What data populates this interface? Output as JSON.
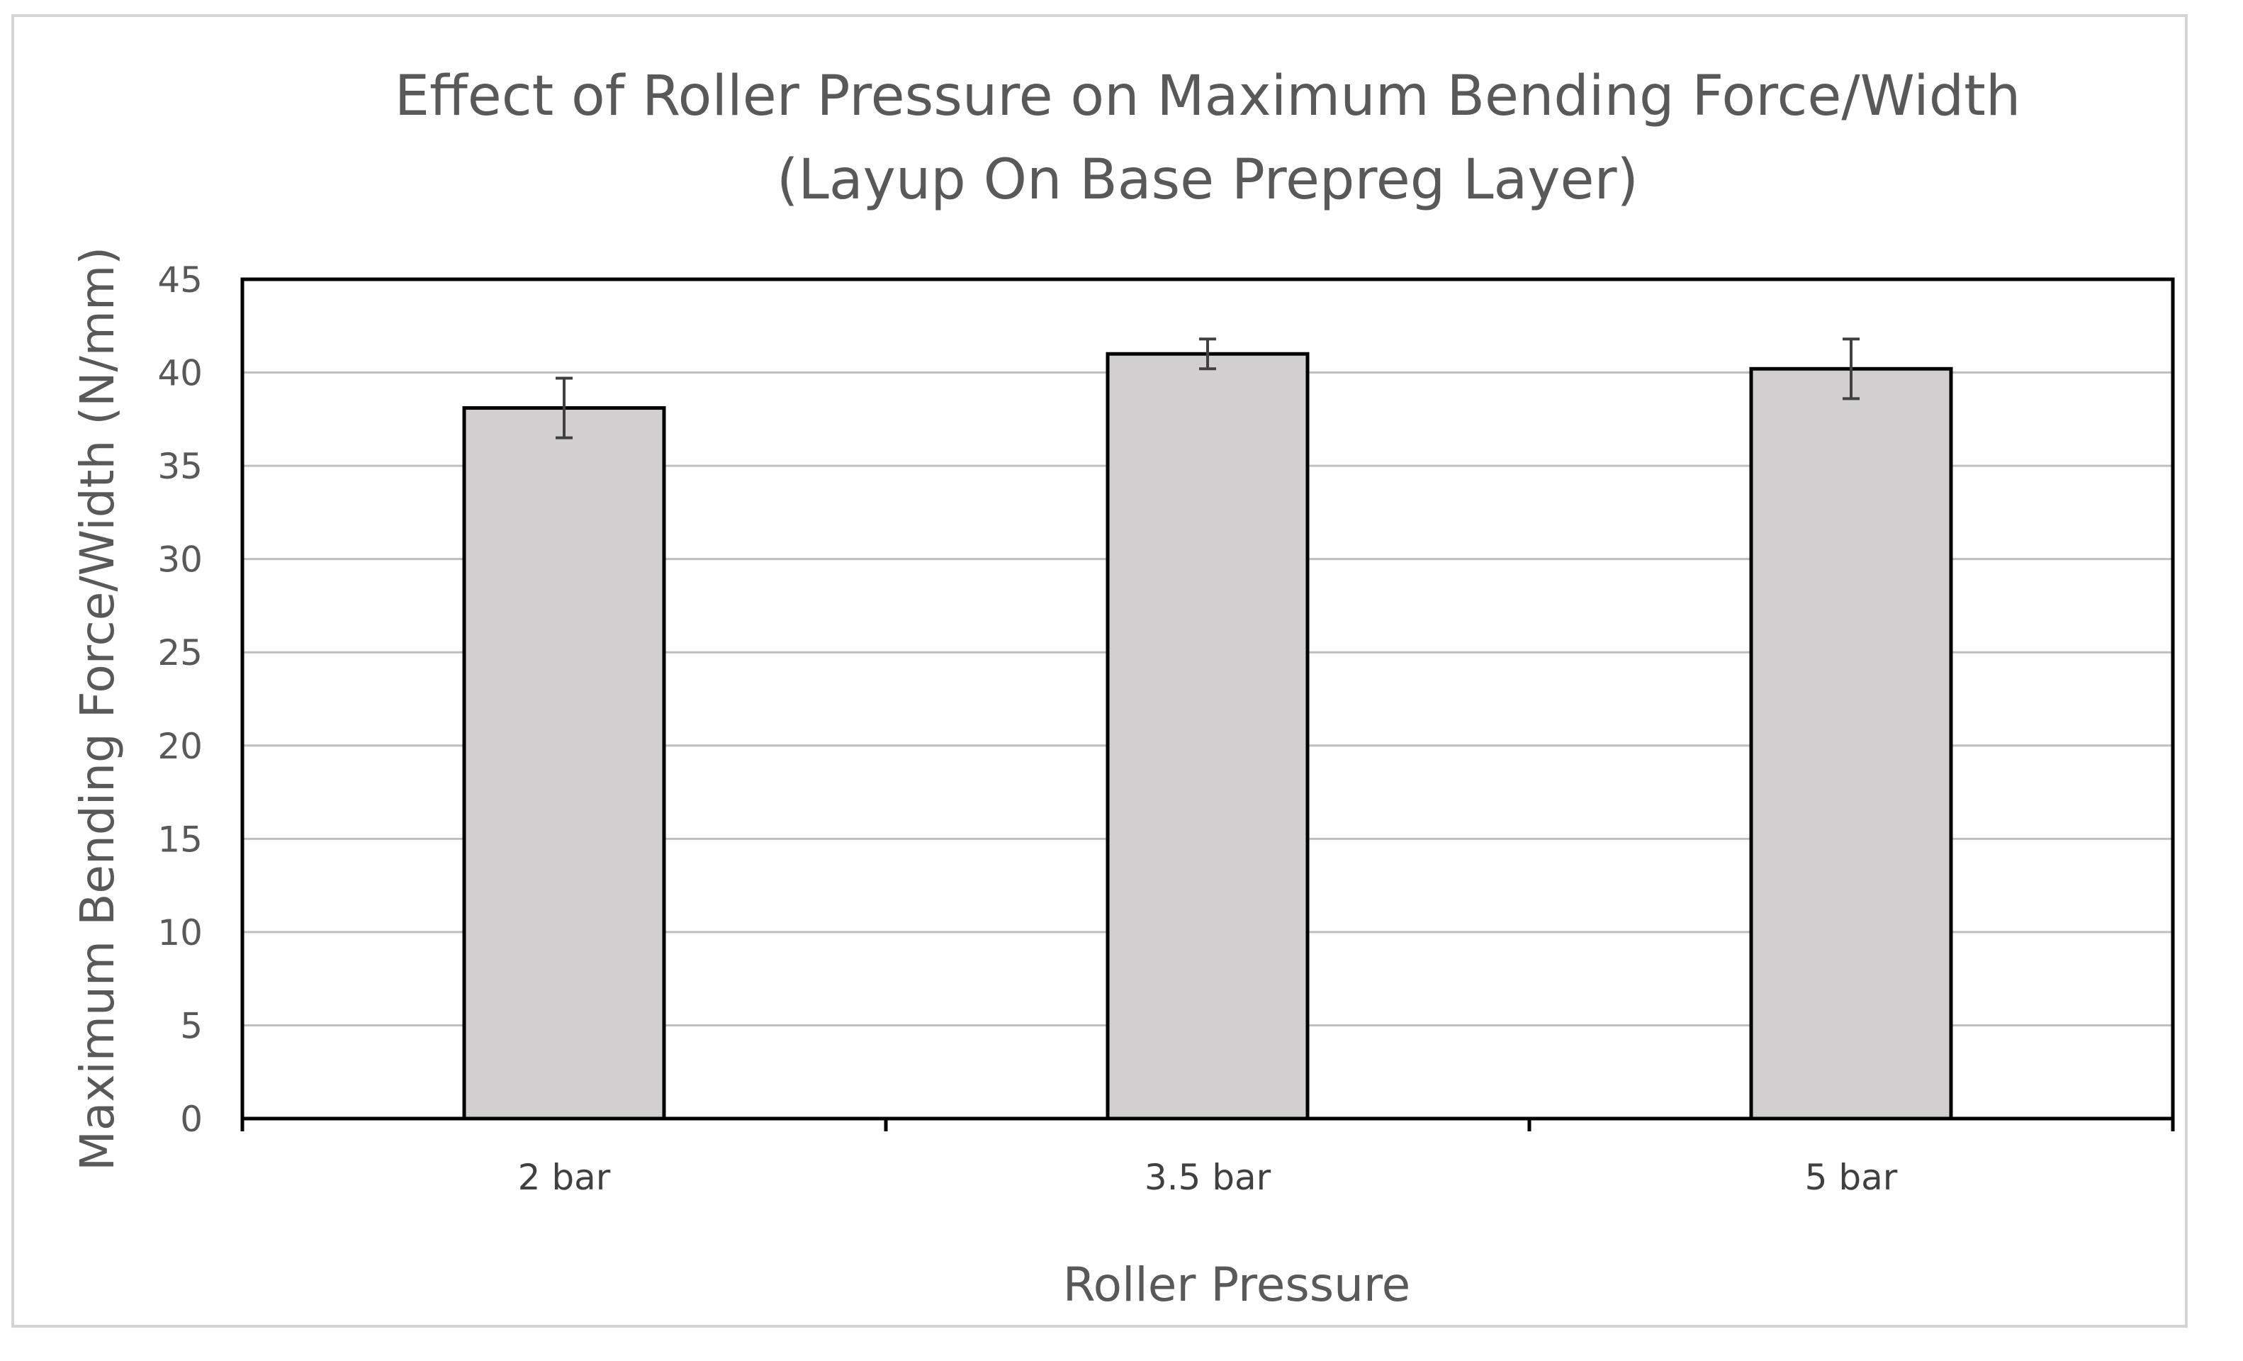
{
  "chart_data": {
    "type": "bar",
    "title_lines": [
      "Effect of Roller Pressure on Maximum Bending Force/Width",
      "(Layup On Base Prepreg Layer)"
    ],
    "xlabel": "Roller Pressure",
    "ylabel": "Maximum Bending Force/Width (N/mm)",
    "categories": [
      "2 bar",
      "3.5 bar",
      "5 bar"
    ],
    "values": [
      38.1,
      41.0,
      40.2
    ],
    "error": [
      1.6,
      0.8,
      1.6
    ],
    "ylim": [
      0,
      45
    ],
    "yticks": [
      0,
      5,
      10,
      15,
      20,
      25,
      30,
      35,
      40,
      45
    ],
    "grid": true,
    "legend": "none",
    "colors": {
      "bar_fill": "#d2cfd0",
      "bar_stroke": "#000000",
      "gridline": "#bfbfbf",
      "axis": "#000000",
      "error_bar": "#404040",
      "text": "#595959"
    }
  }
}
